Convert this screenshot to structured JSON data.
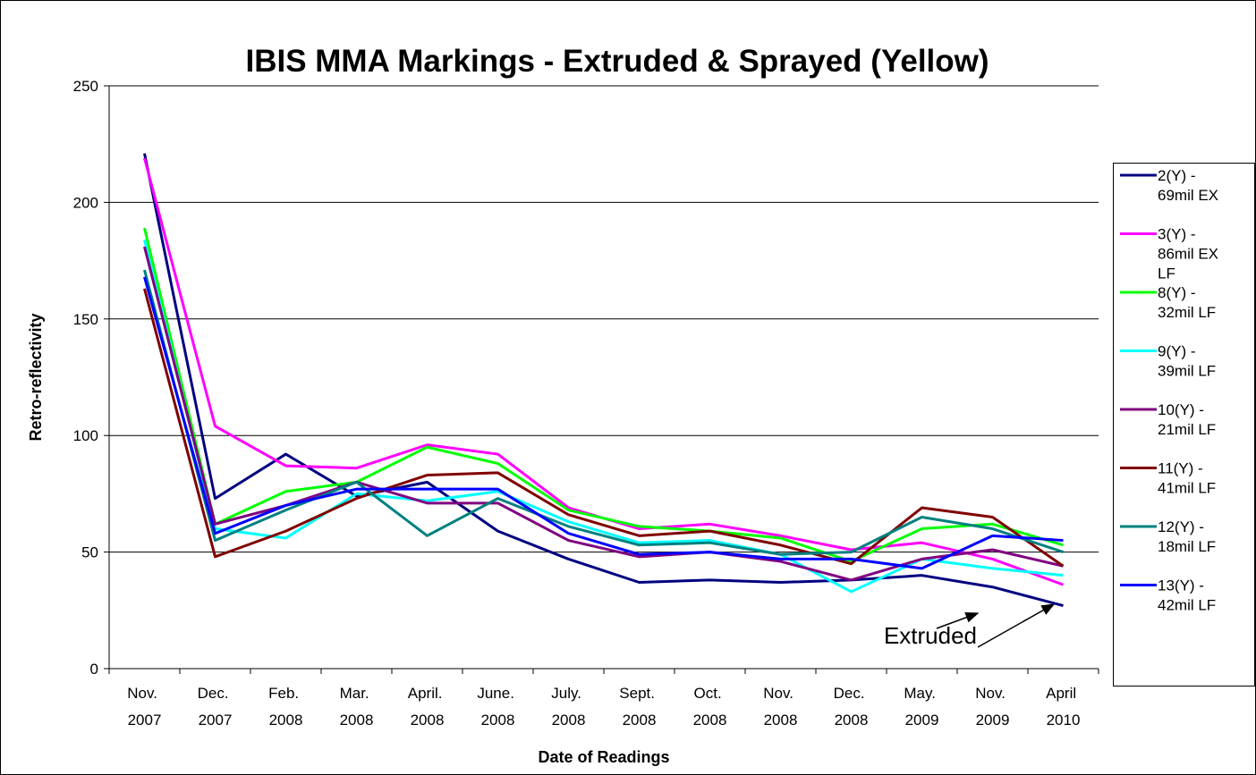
{
  "chart_data": {
    "type": "line",
    "title": "IBIS MMA Markings - Extruded & Sprayed (Yellow)",
    "x_label": "Date of Readings",
    "y_label": "Retro-reflectivity",
    "annotation": "Extruded",
    "categories": [
      "Nov. 2007",
      "Dec. 2007",
      "Feb. 2008",
      "Mar. 2008",
      "April. 2008",
      "June. 2008",
      "July. 2008",
      "Sept. 2008",
      "Oct. 2008",
      "Nov. 2008",
      "Dec. 2008",
      "May. 2009",
      "Nov. 2009",
      "April 2010"
    ],
    "series": [
      {
        "name": "2(Y) - 69mil EX",
        "color": "#000080",
        "values": [
          221,
          73,
          92,
          74,
          80,
          59,
          47,
          37,
          38,
          37,
          38,
          40,
          35,
          27
        ]
      },
      {
        "name": "3(Y) - 86mil EX LF",
        "color": "#ff00ff",
        "values": [
          219,
          104,
          87,
          86,
          96,
          92,
          69,
          60,
          62,
          57,
          51,
          54,
          47,
          36
        ]
      },
      {
        "name": "8(Y) - 32mil LF",
        "color": "#00ff00",
        "values": [
          189,
          62,
          76,
          80,
          95,
          88,
          68,
          61,
          59,
          56,
          46,
          60,
          62,
          53
        ]
      },
      {
        "name": "9(Y) - 39mil LF",
        "color": "#00ffff",
        "values": [
          184,
          60,
          56,
          75,
          72,
          76,
          63,
          54,
          55,
          49,
          33,
          47,
          43,
          40
        ]
      },
      {
        "name": "10(Y) - 21mil LF",
        "color": "#800080",
        "values": [
          181,
          62,
          70,
          80,
          71,
          71,
          55,
          48,
          50,
          46,
          38,
          47,
          51,
          44
        ]
      },
      {
        "name": "11(Y) - 41mil LF",
        "color": "#800000",
        "values": [
          163,
          48,
          59,
          73,
          83,
          84,
          66,
          57,
          59,
          53,
          45,
          69,
          65,
          44
        ]
      },
      {
        "name": "12(Y) - 18mil LF",
        "color": "#008080",
        "values": [
          171,
          55,
          68,
          80,
          57,
          73,
          61,
          53,
          54,
          49,
          50,
          65,
          60,
          50
        ]
      },
      {
        "name": "13(Y) - 42mil LF",
        "color": "#0000ff",
        "values": [
          168,
          58,
          70,
          77,
          77,
          77,
          58,
          49,
          50,
          47,
          47,
          43,
          57,
          55
        ]
      }
    ],
    "ylim": [
      0,
      250
    ],
    "yticks": [
      0,
      50,
      100,
      150,
      200,
      250
    ],
    "grid": true,
    "legend": "right"
  }
}
